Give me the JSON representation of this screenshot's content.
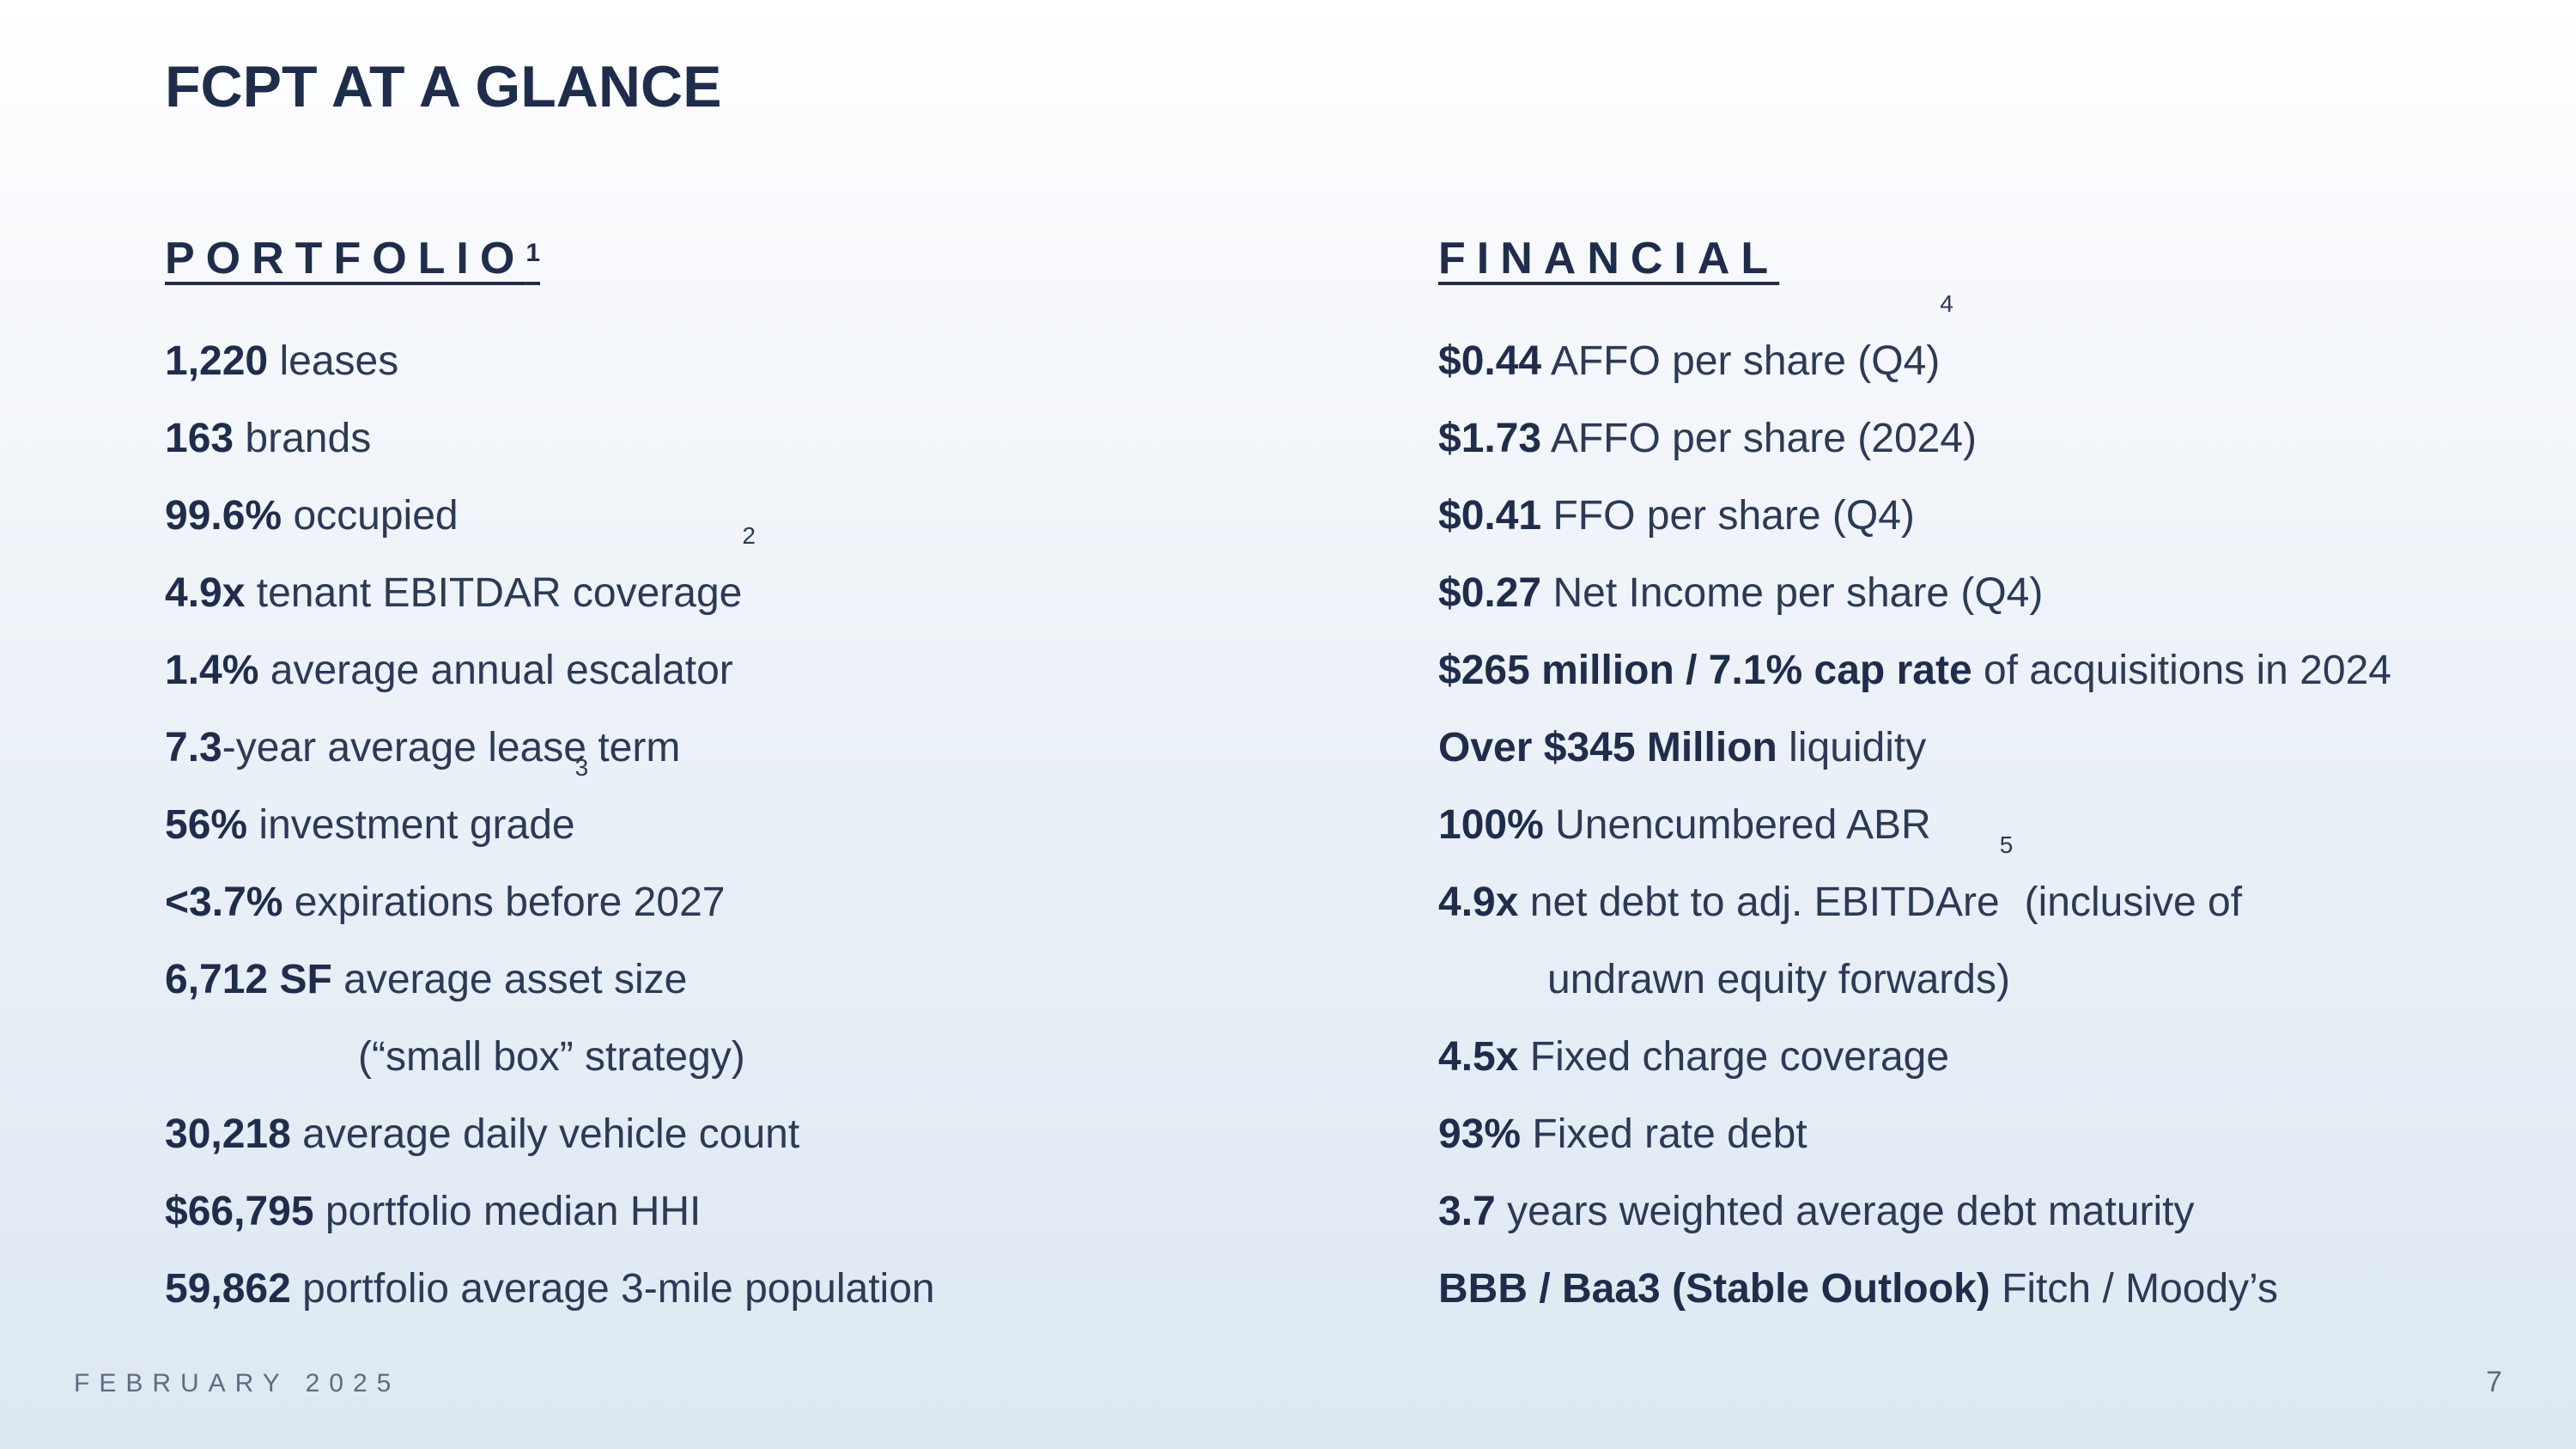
{
  "title": "FCPT AT A GLANCE",
  "portfolio": {
    "heading": "PORTFOLIO",
    "heading_sup": "1",
    "rows": [
      {
        "bold": "1,220",
        "text": " leases",
        "sup": ""
      },
      {
        "bold": "163",
        "text": " brands",
        "sup": ""
      },
      {
        "bold": "99.6%",
        "text": " occupied",
        "sup": ""
      },
      {
        "bold": "4.9x",
        "text": " tenant EBITDAR coverage",
        "sup": "2"
      },
      {
        "bold": "1.4%",
        "text": " average annual escalator",
        "sup": ""
      },
      {
        "bold": "7.3",
        "text": "-year average lease term",
        "sup": ""
      },
      {
        "bold": "56%",
        "text": " investment grade",
        "sup": "3"
      },
      {
        "bold": "<3.7%",
        "text": " expirations before 2027",
        "sup": ""
      },
      {
        "bold": "6,712 SF",
        "text": " average asset size",
        "sup": ""
      },
      {
        "bold": "",
        "text": "(“small box” strategy)",
        "sup": ""
      },
      {
        "bold": "30,218",
        "text": " average daily vehicle count",
        "sup": ""
      },
      {
        "bold": "$66,795",
        "text": " portfolio median HHI",
        "sup": ""
      },
      {
        "bold": "59,862",
        "text": " portfolio average 3-mile population",
        "sup": ""
      }
    ]
  },
  "financial": {
    "heading": "FINANCIAL",
    "rows": [
      {
        "bold": "$0.44",
        "text": " AFFO per share (Q4)",
        "sup": "4",
        "tail": ""
      },
      {
        "bold": "$1.73",
        "text": " AFFO per share (2024)",
        "sup": "",
        "tail": ""
      },
      {
        "bold": "$0.41",
        "text": " FFO per share (Q4)",
        "sup": "",
        "tail": ""
      },
      {
        "bold": "$0.27",
        "text": " Net Income per share (Q4)",
        "sup": "",
        "tail": ""
      },
      {
        "bold": "$265 million / 7.1% cap rate",
        "text": " of acquisitions in 2024",
        "sup": "",
        "tail": ""
      },
      {
        "bold": "Over $345 Million",
        "text": " liquidity",
        "sup": "",
        "tail": ""
      },
      {
        "bold": "100%",
        "text": " Unencumbered ABR",
        "sup": "",
        "tail": ""
      },
      {
        "bold": "4.9x",
        "text": " net debt to adj. EBITDAre",
        "sup": "5",
        "tail": " (inclusive of"
      },
      {
        "bold": "",
        "text": "undrawn equity forwards)",
        "sup": "",
        "tail": ""
      },
      {
        "bold": "4.5x",
        "text": " Fixed charge coverage",
        "sup": "",
        "tail": ""
      },
      {
        "bold": "93%",
        "text": " Fixed rate debt",
        "sup": "",
        "tail": ""
      },
      {
        "bold": "3.7",
        "text": " years weighted average debt maturity",
        "sup": "",
        "tail": ""
      },
      {
        "bold": "BBB / Baa3 (Stable Outlook)",
        "text": " Fitch / Moody’s",
        "sup": "",
        "tail": ""
      }
    ]
  },
  "footer": {
    "date": "FEBRUARY 2025",
    "page": "7"
  }
}
